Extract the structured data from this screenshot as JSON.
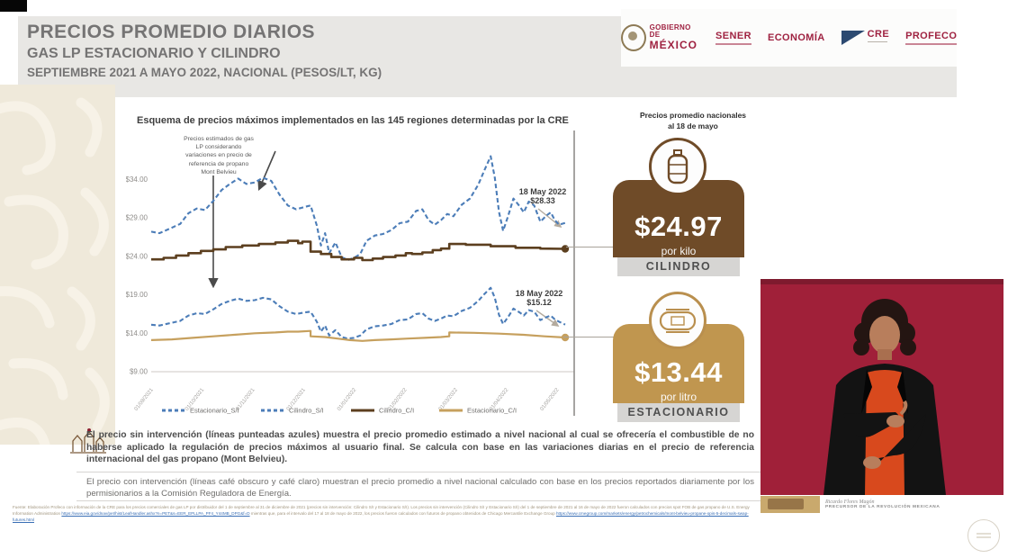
{
  "header": {
    "title_line1": "PRECIOS PROMEDIO DIARIOS",
    "title_line2": "GAS LP ESTACIONARIO Y CILINDRO",
    "title_line3": "SEPTIEMBRE 2021 A MAYO 2022, NACIONAL (PESOS/LT, KG)",
    "logos": {
      "gobierno_line1": "GOBIERNO DE",
      "gobierno_line2": "MÉXICO",
      "sener": "SENER",
      "economia": "ECONOMÍA",
      "cre": "CRE",
      "profeco": "PROFECO"
    }
  },
  "chart": {
    "title": "Esquema de precios máximos implementados en las 145 regiones determinadas por la CRE",
    "annotation": "Precios estimados de gas\nLP considerando\nvariaciones en precio de\nreferencia de propano\nMont Belvieu",
    "callout_top_date": "18 May 2022",
    "callout_top_value": "$28.33",
    "callout_bottom_date": "18 May 2022",
    "callout_bottom_value": "$15.12"
  },
  "chart_data": {
    "type": "line",
    "title": "Esquema de precios máximos implementados en las 145 regiones determinadas por la CRE",
    "ylabel": "",
    "xlabel": "",
    "ylim": [
      9,
      41
    ],
    "grid": false,
    "legend_position": "bottom",
    "y_ticks": [
      {
        "label": "$34.00",
        "value": 34
      },
      {
        "label": "$29.00",
        "value": 29
      },
      {
        "label": "$24.00",
        "value": 24
      },
      {
        "label": "$19.00",
        "value": 19
      },
      {
        "label": "$14.00",
        "value": 14
      },
      {
        "label": "$9.00",
        "value": 9
      }
    ],
    "x_ticks": [
      "01/09/2021",
      "01/10/2021",
      "01/11/2021",
      "01/12/2021",
      "01/01/2022",
      "01/02/2022",
      "01/03/2022",
      "01/04/2022",
      "01/05/2022"
    ],
    "series": [
      {
        "name": "Cilindro_S/I",
        "color": "#4c7db8",
        "dashed": true,
        "width": 2.1,
        "end_dot": false,
        "last_value": 28.33,
        "points": [
          [
            0,
            27.2
          ],
          [
            0.02,
            27.0
          ],
          [
            0.045,
            27.6
          ],
          [
            0.07,
            28.2
          ],
          [
            0.09,
            29.6
          ],
          [
            0.11,
            30.2
          ],
          [
            0.13,
            30.0
          ],
          [
            0.15,
            31.2
          ],
          [
            0.17,
            32.6
          ],
          [
            0.19,
            33.4
          ],
          [
            0.21,
            34.1
          ],
          [
            0.23,
            33.4
          ],
          [
            0.25,
            33.6
          ],
          [
            0.27,
            34.2
          ],
          [
            0.29,
            33.8
          ],
          [
            0.31,
            32.0
          ],
          [
            0.33,
            30.6
          ],
          [
            0.35,
            30.1
          ],
          [
            0.37,
            30.4
          ],
          [
            0.385,
            30.6
          ],
          [
            0.4,
            28.0
          ],
          [
            0.41,
            25.4
          ],
          [
            0.42,
            27.0
          ],
          [
            0.43,
            24.4
          ],
          [
            0.445,
            25.8
          ],
          [
            0.46,
            23.9
          ],
          [
            0.475,
            23.5
          ],
          [
            0.49,
            23.8
          ],
          [
            0.505,
            24.3
          ],
          [
            0.52,
            26.0
          ],
          [
            0.54,
            26.7
          ],
          [
            0.56,
            26.9
          ],
          [
            0.58,
            27.4
          ],
          [
            0.6,
            28.3
          ],
          [
            0.62,
            28.5
          ],
          [
            0.64,
            29.9
          ],
          [
            0.655,
            30.1
          ],
          [
            0.67,
            28.7
          ],
          [
            0.685,
            28.1
          ],
          [
            0.7,
            28.7
          ],
          [
            0.715,
            29.5
          ],
          [
            0.73,
            29.2
          ],
          [
            0.75,
            30.7
          ],
          [
            0.77,
            31.5
          ],
          [
            0.79,
            33.3
          ],
          [
            0.805,
            35.2
          ],
          [
            0.82,
            37.0
          ],
          [
            0.83,
            34.2
          ],
          [
            0.84,
            29.8
          ],
          [
            0.85,
            27.3
          ],
          [
            0.862,
            29.2
          ],
          [
            0.875,
            31.5
          ],
          [
            0.89,
            30.5
          ],
          [
            0.9,
            29.7
          ],
          [
            0.912,
            31.1
          ],
          [
            0.925,
            30.6
          ],
          [
            0.94,
            28.5
          ],
          [
            0.955,
            29.3
          ],
          [
            0.965,
            29.7
          ],
          [
            0.975,
            28.7
          ],
          [
            0.985,
            28.1
          ],
          [
            1,
            28.33
          ]
        ]
      },
      {
        "name": "Estacionario_S/I",
        "color": "#4c7db8",
        "dashed": true,
        "width": 2.1,
        "end_dot": false,
        "last_value": 15.12,
        "points": [
          [
            0,
            15.1
          ],
          [
            0.02,
            15.0
          ],
          [
            0.045,
            15.3
          ],
          [
            0.07,
            15.6
          ],
          [
            0.09,
            16.3
          ],
          [
            0.11,
            16.6
          ],
          [
            0.13,
            16.5
          ],
          [
            0.15,
            17.1
          ],
          [
            0.17,
            17.8
          ],
          [
            0.19,
            18.2
          ],
          [
            0.21,
            18.5
          ],
          [
            0.23,
            18.2
          ],
          [
            0.25,
            18.3
          ],
          [
            0.27,
            18.6
          ],
          [
            0.29,
            18.4
          ],
          [
            0.31,
            17.5
          ],
          [
            0.33,
            16.8
          ],
          [
            0.35,
            16.5
          ],
          [
            0.37,
            16.7
          ],
          [
            0.385,
            16.8
          ],
          [
            0.4,
            15.5
          ],
          [
            0.41,
            14.2
          ],
          [
            0.42,
            15.0
          ],
          [
            0.43,
            13.7
          ],
          [
            0.445,
            14.4
          ],
          [
            0.46,
            13.5
          ],
          [
            0.475,
            13.3
          ],
          [
            0.49,
            13.4
          ],
          [
            0.505,
            13.7
          ],
          [
            0.52,
            14.5
          ],
          [
            0.54,
            14.9
          ],
          [
            0.56,
            15.0
          ],
          [
            0.58,
            15.2
          ],
          [
            0.6,
            15.7
          ],
          [
            0.62,
            15.8
          ],
          [
            0.64,
            16.5
          ],
          [
            0.655,
            16.6
          ],
          [
            0.67,
            15.9
          ],
          [
            0.685,
            15.6
          ],
          [
            0.7,
            15.9
          ],
          [
            0.715,
            16.3
          ],
          [
            0.73,
            16.2
          ],
          [
            0.75,
            16.9
          ],
          [
            0.77,
            17.3
          ],
          [
            0.79,
            18.2
          ],
          [
            0.805,
            19.1
          ],
          [
            0.82,
            19.9
          ],
          [
            0.83,
            18.6
          ],
          [
            0.84,
            16.4
          ],
          [
            0.85,
            15.2
          ],
          [
            0.862,
            16.1
          ],
          [
            0.875,
            17.2
          ],
          [
            0.89,
            16.7
          ],
          [
            0.9,
            16.3
          ],
          [
            0.912,
            17.0
          ],
          [
            0.925,
            16.8
          ],
          [
            0.94,
            15.7
          ],
          [
            0.955,
            16.1
          ],
          [
            0.965,
            16.3
          ],
          [
            0.975,
            15.8
          ],
          [
            0.985,
            15.5
          ],
          [
            1,
            15.12
          ]
        ]
      },
      {
        "name": "Cilindro_C/I",
        "color": "#5c3f1f",
        "dashed": false,
        "width": 2.6,
        "end_dot": true,
        "last_value": 24.97,
        "points": [
          [
            0,
            23.6
          ],
          [
            0.03,
            23.6
          ],
          [
            0.03,
            23.8
          ],
          [
            0.06,
            23.8
          ],
          [
            0.06,
            24.1
          ],
          [
            0.09,
            24.1
          ],
          [
            0.09,
            24.4
          ],
          [
            0.12,
            24.4
          ],
          [
            0.12,
            24.7
          ],
          [
            0.15,
            24.7
          ],
          [
            0.15,
            24.9
          ],
          [
            0.18,
            24.9
          ],
          [
            0.18,
            25.2
          ],
          [
            0.22,
            25.2
          ],
          [
            0.22,
            25.4
          ],
          [
            0.26,
            25.4
          ],
          [
            0.26,
            25.6
          ],
          [
            0.3,
            25.6
          ],
          [
            0.3,
            25.8
          ],
          [
            0.33,
            25.8
          ],
          [
            0.33,
            26.0
          ],
          [
            0.355,
            26.0
          ],
          [
            0.355,
            25.7
          ],
          [
            0.365,
            25.7
          ],
          [
            0.365,
            25.9
          ],
          [
            0.385,
            25.9
          ],
          [
            0.385,
            24.6
          ],
          [
            0.41,
            24.6
          ],
          [
            0.41,
            24.3
          ],
          [
            0.435,
            24.3
          ],
          [
            0.435,
            23.9
          ],
          [
            0.46,
            23.9
          ],
          [
            0.46,
            23.6
          ],
          [
            0.49,
            23.6
          ],
          [
            0.49,
            23.8
          ],
          [
            0.51,
            23.8
          ],
          [
            0.51,
            23.5
          ],
          [
            0.535,
            23.5
          ],
          [
            0.535,
            23.7
          ],
          [
            0.56,
            23.7
          ],
          [
            0.56,
            23.9
          ],
          [
            0.59,
            23.9
          ],
          [
            0.59,
            24.1
          ],
          [
            0.615,
            24.1
          ],
          [
            0.615,
            24.4
          ],
          [
            0.63,
            24.4
          ],
          [
            0.63,
            24.3
          ],
          [
            0.655,
            24.3
          ],
          [
            0.655,
            24.5
          ],
          [
            0.68,
            24.5
          ],
          [
            0.68,
            24.8
          ],
          [
            0.7,
            24.8
          ],
          [
            0.7,
            25.0
          ],
          [
            0.72,
            25.0
          ],
          [
            0.72,
            25.6
          ],
          [
            0.76,
            25.6
          ],
          [
            0.76,
            25.5
          ],
          [
            0.82,
            25.5
          ],
          [
            0.82,
            25.3
          ],
          [
            0.88,
            25.3
          ],
          [
            0.88,
            25.1
          ],
          [
            0.94,
            25.1
          ],
          [
            0.94,
            25.0
          ],
          [
            1,
            24.97
          ]
        ]
      },
      {
        "name": "Estacionario_C/I",
        "color": "#c6a05e",
        "dashed": false,
        "width": 2.2,
        "end_dot": true,
        "last_value": 13.44,
        "points": [
          [
            0,
            13.1
          ],
          [
            0.05,
            13.2
          ],
          [
            0.1,
            13.4
          ],
          [
            0.15,
            13.6
          ],
          [
            0.2,
            13.8
          ],
          [
            0.25,
            14.0
          ],
          [
            0.3,
            14.1
          ],
          [
            0.33,
            14.2
          ],
          [
            0.355,
            14.2
          ],
          [
            0.385,
            14.3
          ],
          [
            0.385,
            13.6
          ],
          [
            0.42,
            13.5
          ],
          [
            0.45,
            13.3
          ],
          [
            0.48,
            13.1
          ],
          [
            0.51,
            13.0
          ],
          [
            0.54,
            13.1
          ],
          [
            0.58,
            13.2
          ],
          [
            0.62,
            13.3
          ],
          [
            0.66,
            13.4
          ],
          [
            0.7,
            13.5
          ],
          [
            0.72,
            13.6
          ],
          [
            0.72,
            14.1
          ],
          [
            0.78,
            14.05
          ],
          [
            0.84,
            13.95
          ],
          [
            0.9,
            13.8
          ],
          [
            0.95,
            13.6
          ],
          [
            1,
            13.44
          ]
        ]
      }
    ],
    "legend": [
      {
        "label": "Estacionario_S/I",
        "color": "#4c7db8",
        "dashed": true
      },
      {
        "label": "Cilindro_S/I",
        "color": "#4c7db8",
        "dashed": true
      },
      {
        "label": "Cilindro_C/I",
        "color": "#5c3f1f",
        "dashed": false
      },
      {
        "label": "Estacionario_C/I",
        "color": "#c6a05e",
        "dashed": false
      }
    ]
  },
  "side_panel": {
    "heading_line1": "Precios promedio nacionales",
    "heading_line2": "al 18 de mayo",
    "cards": [
      {
        "price": "$24.97",
        "unit": "por kilo",
        "label": "CILINDRO",
        "icon_text": "GAS",
        "color": "#6f4b28"
      },
      {
        "price": "$13.44",
        "unit": "por litro",
        "label": "ESTACIONARIO",
        "icon_text": "GAS",
        "color": "#c0964f"
      }
    ]
  },
  "notes": {
    "para1": "El precio sin intervención (líneas punteadas azules) muestra el precio promedio estimado a nivel nacional al cual se ofrecería el combustible de no haberse aplicado la regulación de precios máximos al usuario final. Se calcula con base en las variaciones diarias en el precio de referencia internacional del gas propano (Mont Belvieu).",
    "para2": "El precio con intervención (líneas café obscuro y café claro) muestran el precio promedio a nivel nacional calculado con base en los precios reportados diariamente por los permisionarios a la Comisión Reguladora de Energía.",
    "footnote_text1": "Fuente: Elaboración Profeco con información de la CRE para los precios comerciales de gas LP por distribuidor del 1 de septiembre al 31 de diciembre de 2021 (precios sin intervención: Cilindro S/I y Estacionario S/I). Los precios sin intervención (Cilindro S/I y Estacionario S/I) del 1 de septiembre de 2021 al 16 de mayo de 2022 fueron calculados con",
    "footnote_text2": "precios spot FOB de gas propano de U.S. Energy Information Administration ",
    "footnote_link1": "https://www.eia.gov/dnav/pet/hist/LeafHandler.ashx?n=PET&s=EER_EPLLPA_PF4_Y44MB_DPG&f=D",
    "footnote_text3": " mientras que, para el intervalo del 17 al 18 de mayo de 2022, los precios fueron calculados con futuros de propano obtenidos de Chicago Mercantile Exchange Group",
    "footnote_link2": "https://www.cmegroup.com/markets/energy/petrochemicals/mont-belvieu-propane-opis-5-decimals-swap-futures.html"
  },
  "interpreter_banner": {
    "name_script": "Ricardo Flores Magón",
    "caption": "PRECURSOR DE LA REVOLUCIÓN MEXICANA"
  },
  "colors": {
    "accent_maroon": "#9f2241",
    "brown_dark": "#6f4b28",
    "tan": "#c0964f",
    "blue_line": "#4c7db8",
    "video_bg": "#a02039"
  }
}
